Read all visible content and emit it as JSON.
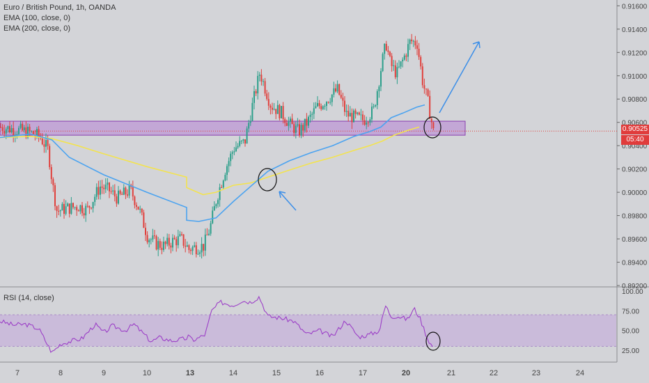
{
  "header": {
    "title": "Euro / British Pound, 1h, OANDA",
    "ema100_label": "EMA (100, close, 0)",
    "ema200_label": "EMA (200, close, 0)",
    "rsi_label": "RSI (14, close)"
  },
  "price_tags": {
    "last_price": "0.90525",
    "countdown": "05:40"
  },
  "colors": {
    "background": "#d3d4d8",
    "up_candle": "#2b9f8a",
    "down_candle": "#e0403c",
    "ema100": "#4ba3f0",
    "ema200": "#f3e34f",
    "zone": "#b682d6",
    "rsi_line": "#9c3fc7",
    "annotation": "#3b8ee8"
  },
  "chart_data": [
    {
      "type": "candlestick",
      "symbol": "Euro / British Pound",
      "timeframe": "1h",
      "source": "OANDA",
      "x_ticks": [
        "7",
        "8",
        "9",
        "10",
        "13",
        "14",
        "15",
        "16",
        "17",
        "20",
        "21",
        "22",
        "23",
        "24"
      ],
      "y_ticks": [
        "0.89200",
        "0.89400",
        "0.89600",
        "0.89800",
        "0.90000",
        "0.90200",
        "0.90400",
        "0.90600",
        "0.90800",
        "0.91000",
        "0.91200",
        "0.91400",
        "0.91600"
      ],
      "ylim": [
        0.892,
        0.9165
      ],
      "last_price": 0.90525,
      "zone": [
        0.9049,
        0.9061
      ],
      "close_path": [
        [
          6.6,
          0.9056
        ],
        [
          6.9,
          0.9054
        ],
        [
          7.2,
          0.9052
        ],
        [
          7.5,
          0.9048
        ],
        [
          7.7,
          0.9036
        ],
        [
          7.8,
          0.9006
        ],
        [
          7.9,
          0.8984
        ],
        [
          8.1,
          0.8986
        ],
        [
          8.4,
          0.8988
        ],
        [
          8.6,
          0.8985
        ],
        [
          8.9,
          0.9005
        ],
        [
          9.1,
          0.9002
        ],
        [
          9.3,
          0.8995
        ],
        [
          9.6,
          0.9002
        ],
        [
          9.8,
          0.8986
        ],
        [
          10.0,
          0.8962
        ],
        [
          10.2,
          0.8956
        ],
        [
          10.4,
          0.8954
        ],
        [
          10.6,
          0.8958
        ],
        [
          10.8,
          0.896
        ],
        [
          10.95,
          0.8953
        ],
        [
          12.7,
          0.8949
        ],
        [
          13.0,
          0.8952
        ],
        [
          13.3,
          0.8954
        ],
        [
          13.45,
          0.897
        ],
        [
          13.6,
          0.8995
        ],
        [
          13.8,
          0.902
        ],
        [
          14.0,
          0.9038
        ],
        [
          14.25,
          0.9043
        ],
        [
          14.4,
          0.907
        ],
        [
          14.6,
          0.9103
        ],
        [
          14.85,
          0.9075
        ],
        [
          15.1,
          0.9068
        ],
        [
          15.3,
          0.9058
        ],
        [
          15.5,
          0.9052
        ],
        [
          15.7,
          0.906
        ],
        [
          15.9,
          0.9072
        ],
        [
          16.1,
          0.9078
        ],
        [
          16.4,
          0.9088
        ],
        [
          16.6,
          0.9067
        ],
        [
          16.8,
          0.9064
        ],
        [
          17.0,
          0.9062
        ],
        [
          17.3,
          0.907
        ],
        [
          17.55,
          0.911
        ],
        [
          17.7,
          0.9128
        ],
        [
          17.85,
          0.911
        ],
        [
          18.05,
          0.9102
        ],
        [
          18.2,
          0.9115
        ],
        [
          18.35,
          0.913
        ],
        [
          18.5,
          0.9128
        ],
        [
          18.6,
          0.9095
        ],
        [
          18.7,
          0.9076
        ],
        [
          18.8,
          0.905
        ]
      ],
      "ema100": [
        [
          6.6,
          0.9047
        ],
        [
          7.3,
          0.905
        ],
        [
          7.8,
          0.9045
        ],
        [
          8.2,
          0.903
        ],
        [
          9.0,
          0.9015
        ],
        [
          10.0,
          0.9
        ],
        [
          10.95,
          0.8987
        ],
        [
          12.8,
          0.8976
        ],
        [
          13.2,
          0.8975
        ],
        [
          13.6,
          0.8978
        ],
        [
          14.0,
          0.8992
        ],
        [
          14.4,
          0.9005
        ],
        [
          14.8,
          0.9018
        ],
        [
          15.3,
          0.9027
        ],
        [
          15.8,
          0.9034
        ],
        [
          16.3,
          0.904
        ],
        [
          16.8,
          0.9048
        ],
        [
          17.2,
          0.9052
        ],
        [
          17.55,
          0.9056
        ],
        [
          17.9,
          0.9064
        ],
        [
          18.2,
          0.9068
        ],
        [
          18.5,
          0.9073
        ],
        [
          18.65,
          0.9075
        ]
      ],
      "ema200": [
        [
          6.6,
          0.9047
        ],
        [
          7.3,
          0.9048
        ],
        [
          7.8,
          0.9046
        ],
        [
          8.4,
          0.904
        ],
        [
          9.0,
          0.9033
        ],
        [
          10.0,
          0.9022
        ],
        [
          10.95,
          0.9013
        ],
        [
          12.8,
          0.9004
        ],
        [
          13.3,
          0.8998
        ],
        [
          13.6,
          0.9
        ],
        [
          14.0,
          0.9006
        ],
        [
          14.4,
          0.9008
        ],
        [
          14.8,
          0.9013
        ],
        [
          15.3,
          0.9019
        ],
        [
          15.8,
          0.9025
        ],
        [
          16.3,
          0.903
        ],
        [
          16.8,
          0.9036
        ],
        [
          17.2,
          0.904
        ],
        [
          17.6,
          0.9044
        ],
        [
          18.0,
          0.9049
        ],
        [
          18.3,
          0.9053
        ],
        [
          18.55,
          0.9056
        ]
      ]
    },
    {
      "type": "line",
      "name": "RSI (14, close)",
      "y_ticks": [
        "25.00",
        "50.00",
        "75.00",
        "100.00"
      ],
      "ylim": [
        10,
        100
      ],
      "band": [
        30,
        70
      ],
      "x": [
        6.6,
        6.9,
        7.2,
        7.5,
        7.65,
        7.8,
        8.0,
        8.2,
        8.5,
        8.8,
        9.0,
        9.2,
        9.5,
        9.7,
        9.9,
        10.1,
        10.3,
        10.6,
        10.95,
        12.8,
        13.1,
        13.35,
        13.5,
        13.7,
        14.0,
        14.2,
        14.4,
        14.6,
        14.8,
        15.1,
        15.4,
        15.7,
        16.0,
        16.3,
        16.6,
        16.9,
        17.2,
        17.5,
        17.7,
        17.9,
        18.1,
        18.3,
        18.45,
        18.55,
        18.7,
        18.8
      ],
      "y": [
        62,
        57,
        58,
        52,
        37,
        22,
        33,
        36,
        40,
        58,
        47,
        56,
        50,
        58,
        47,
        36,
        41,
        37,
        40,
        45,
        38,
        45,
        75,
        86,
        82,
        88,
        86,
        93,
        68,
        66,
        62,
        45,
        50,
        42,
        63,
        42,
        45,
        50,
        82,
        68,
        68,
        64,
        78,
        68,
        40,
        28
      ]
    }
  ]
}
